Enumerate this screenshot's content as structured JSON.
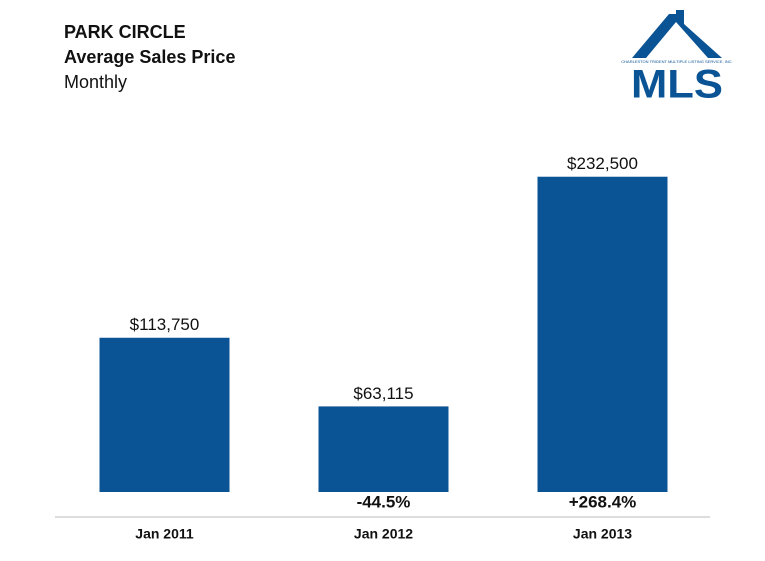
{
  "chart_data": {
    "type": "bar",
    "title": "PARK CIRCLE",
    "subtitle": "Average Sales Price",
    "period": "Monthly",
    "categories": [
      "Jan 2011",
      "Jan 2012",
      "Jan 2013"
    ],
    "values": [
      113750,
      63115,
      232500
    ],
    "value_labels": [
      "$113,750",
      "$63,115",
      "$232,500"
    ],
    "change_labels": [
      null,
      "-44.5%",
      "+268.4%"
    ],
    "color": "#0a5395",
    "ylim": [
      0,
      250000
    ],
    "logo": {
      "text": "MLS",
      "tagline": "CHARLESTON TRIDENT MULTIPLE LISTING SERVICE, INC."
    }
  }
}
